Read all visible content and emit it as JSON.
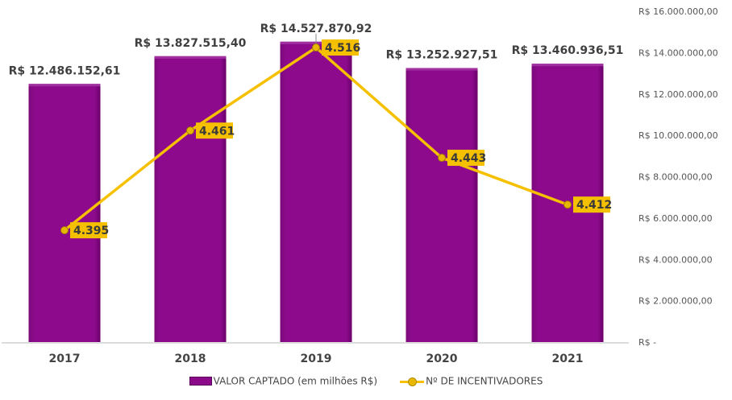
{
  "chart_data": {
    "type": "bar+line",
    "categories": [
      "2017",
      "2018",
      "2019",
      "2020",
      "2021"
    ],
    "series": [
      {
        "name": "VALOR CAPTADO (em milhões R$)",
        "type": "bar",
        "axis": "right",
        "values": [
          12486152.61,
          13827515.4,
          14527870.92,
          13252927.51,
          13460936.51
        ],
        "labels": [
          "R$ 12.486.152,61",
          "R$ 13.827.515,40",
          "R$ 14.527.870,92",
          "R$ 13.252.927,51",
          "R$ 13.460.936,51"
        ],
        "color": "#8a0a8a"
      },
      {
        "name": "Nº DE INCENTIVADORES",
        "type": "line",
        "axis": "secondary-hidden",
        "values": [
          4395,
          4461,
          4516,
          4443,
          4412
        ],
        "labels": [
          "4.395",
          "4.461",
          "4.516",
          "4.443",
          "4.412"
        ],
        "color": "#f5c000"
      }
    ],
    "y_axis": {
      "position": "right",
      "ylim": [
        0,
        16000000
      ],
      "ticks": [
        "R$ -",
        "R$ 2.000.000,00",
        "R$ 4.000.000,00",
        "R$ 6.000.000,00",
        "R$ 8.000.000,00",
        "R$ 10.000.000,00",
        "R$ 12.000.000,00",
        "R$ 14.000.000,00",
        "R$ 16.000.000,00"
      ]
    },
    "secondary_ylim": [
      4321,
      4540
    ],
    "grid": false,
    "legend": "bottom"
  }
}
